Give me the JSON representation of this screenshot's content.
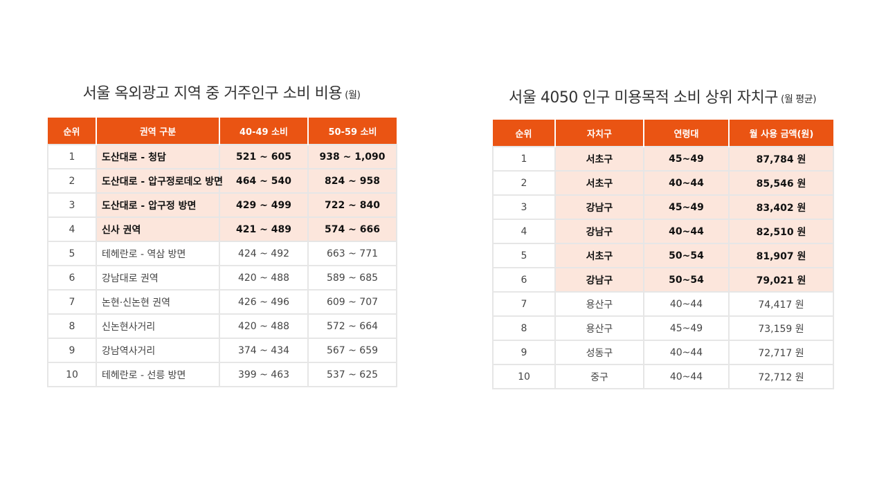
{
  "left_table": {
    "title": "서울 옥외광고 지역 중 거주인구 소비 비용",
    "title_sub": "(월)",
    "headers": [
      "순위",
      "권역 구분",
      "40-49 소비",
      "50-59 소비"
    ],
    "rows": [
      {
        "rank": "1",
        "area": "도산대로 - 청담",
        "v40": "521 ~ 605",
        "v50": "938 ~ 1,090",
        "highlight": true
      },
      {
        "rank": "2",
        "area": "도산대로 - 압구정로데오 방면",
        "v40": "464 ~ 540",
        "v50": "824 ~ 958",
        "highlight": true
      },
      {
        "rank": "3",
        "area": "도산대로 - 압구정 방면",
        "v40": "429 ~ 499",
        "v50": "722 ~ 840",
        "highlight": true
      },
      {
        "rank": "4",
        "area": "신사 권역",
        "v40": "421 ~ 489",
        "v50": "574 ~ 666",
        "highlight": true
      },
      {
        "rank": "5",
        "area": "테헤란로 - 역삼 방면",
        "v40": "424 ~ 492",
        "v50": "663 ~ 771",
        "highlight": false
      },
      {
        "rank": "6",
        "area": "강남대로 권역",
        "v40": "420 ~ 488",
        "v50": "589 ~ 685",
        "highlight": false
      },
      {
        "rank": "7",
        "area": "논현·신논현 권역",
        "v40": "426 ~ 496",
        "v50": "609 ~ 707",
        "highlight": false
      },
      {
        "rank": "8",
        "area": "신논현사거리",
        "v40": "420 ~ 488",
        "v50": "572 ~ 664",
        "highlight": false
      },
      {
        "rank": "9",
        "area": "강남역사거리",
        "v40": "374 ~ 434",
        "v50": "567 ~ 659",
        "highlight": false
      },
      {
        "rank": "10",
        "area": "테헤란로 - 선릉 방면",
        "v40": "399 ~ 463",
        "v50": "537 ~ 625",
        "highlight": false
      }
    ]
  },
  "right_table": {
    "title": "서울 4050 인구 미용목적 소비 상위 자치구",
    "title_sub": "(월 평균)",
    "headers": [
      "순위",
      "자치구",
      "연령대",
      "월 사용 금액(원)"
    ],
    "rows": [
      {
        "rank": "1",
        "district": "서초구",
        "age": "45~49",
        "amount": "87,784 원",
        "highlight": true
      },
      {
        "rank": "2",
        "district": "서초구",
        "age": "40~44",
        "amount": "85,546 원",
        "highlight": true
      },
      {
        "rank": "3",
        "district": "강남구",
        "age": "45~49",
        "amount": "83,402 원",
        "highlight": true
      },
      {
        "rank": "4",
        "district": "강남구",
        "age": "40~44",
        "amount": "82,510 원",
        "highlight": true
      },
      {
        "rank": "5",
        "district": "서초구",
        "age": "50~54",
        "amount": "81,907 원",
        "highlight": true
      },
      {
        "rank": "6",
        "district": "강남구",
        "age": "50~54",
        "amount": "79,021 원",
        "highlight": true
      },
      {
        "rank": "7",
        "district": "용산구",
        "age": "40~44",
        "amount": "74,417 원",
        "highlight": false
      },
      {
        "rank": "8",
        "district": "용산구",
        "age": "45~49",
        "amount": "73,159 원",
        "highlight": false
      },
      {
        "rank": "9",
        "district": "성동구",
        "age": "40~44",
        "amount": "72,717 원",
        "highlight": false
      },
      {
        "rank": "10",
        "district": "중구",
        "age": "40~44",
        "amount": "72,712 원",
        "highlight": false
      }
    ]
  },
  "colors": {
    "header_orange": "#ea5413",
    "highlight_peach": "#fce6dc",
    "border_gray": "#e6e6e6"
  }
}
